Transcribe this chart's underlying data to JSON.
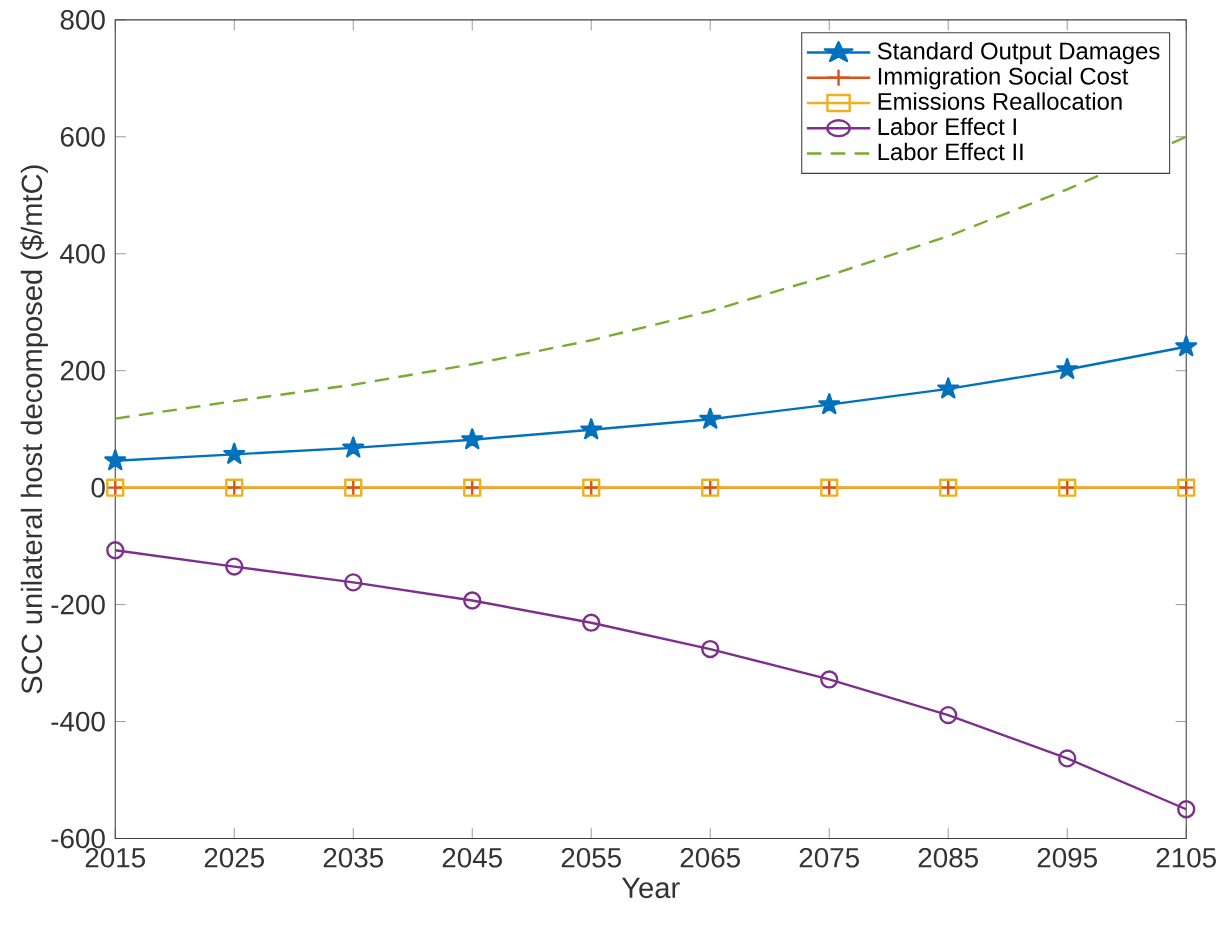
{
  "chart_data": {
    "type": "line",
    "xlabel": "Year",
    "ylabel": "SCC unilateral host decomposed ($/mtC)",
    "x": [
      2015,
      2025,
      2035,
      2045,
      2055,
      2065,
      2075,
      2085,
      2095,
      2105
    ],
    "xlim": [
      2015,
      2105
    ],
    "xticks": [
      2015,
      2025,
      2035,
      2045,
      2055,
      2065,
      2075,
      2085,
      2095,
      2105
    ],
    "ylim": [
      -600,
      800
    ],
    "yticks": [
      -600,
      -400,
      -200,
      0,
      200,
      400,
      600,
      800
    ],
    "legend": "top right",
    "series": [
      {
        "name": "Standard Output Damages",
        "color": "#0072bd",
        "marker": "star",
        "line_style": "solid",
        "values": [
          46,
          57,
          68,
          82,
          99,
          117,
          142,
          169,
          202,
          241
        ]
      },
      {
        "name": "Immigration Social Cost",
        "color": "#d95319",
        "marker": "cross",
        "line_style": "solid",
        "values": [
          0,
          0,
          0,
          0,
          0,
          0,
          0,
          0,
          0,
          0
        ]
      },
      {
        "name": "Emissions Reallocation",
        "color": "#edb120",
        "marker": "square",
        "line_style": "solid",
        "values": [
          0,
          0,
          0,
          0,
          0,
          0,
          0,
          0,
          0,
          0
        ]
      },
      {
        "name": "Labor Effect I",
        "color": "#7e2f8e",
        "marker": "circle",
        "line_style": "solid",
        "values": [
          -107,
          -135,
          -162,
          -193,
          -231,
          -276,
          -328,
          -389,
          -463,
          -550
        ]
      },
      {
        "name": "Labor Effect II",
        "color": "#77ac30",
        "marker": "none",
        "line_style": "dashed",
        "values": [
          118,
          148,
          176,
          211,
          252,
          302,
          363,
          430,
          510,
          600
        ]
      }
    ]
  }
}
